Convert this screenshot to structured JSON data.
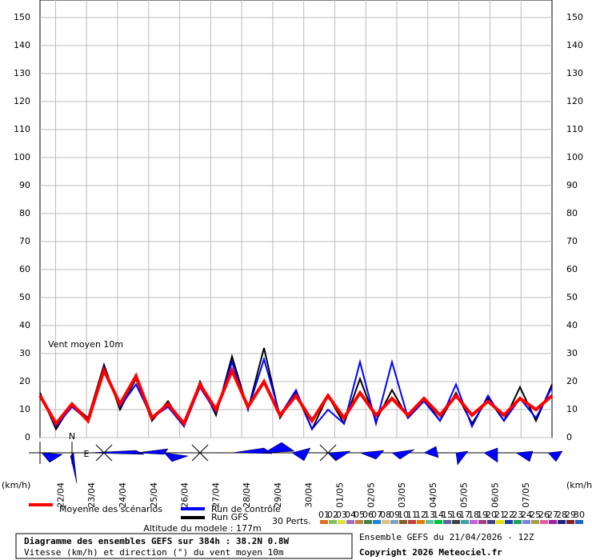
{
  "chart_data": {
    "type": "line",
    "title": "Diagramme des ensembles GEFS sur 384h : 38.2N 0.8W",
    "subtitle": "Vitesse (km/h) et direction (°) du vent moyen 10m",
    "run_label": "Ensemble GEFS du 21/04/2026 - 12Z",
    "copyright": "Copyright 2026 Meteociel.fr",
    "altitude": "Altitude du modele : 177m",
    "annotation": "Vent moyen 10m",
    "y_unit_left": "(km/h)",
    "y_unit_right": "(km/h)",
    "north_label": "N",
    "east_label": "E",
    "perturbations_label": "30 Perts.",
    "day_labels": [
      "22/04",
      "23/04",
      "24/04",
      "25/04",
      "26/04",
      "27/04",
      "28/04",
      "29/04",
      "30/04",
      "01/05",
      "02/05",
      "03/05",
      "04/05",
      "05/05",
      "06/05",
      "07/05"
    ],
    "ylim": [
      0,
      150
    ],
    "yticks": [
      0,
      10,
      20,
      30,
      40,
      50,
      60,
      70,
      80,
      90,
      100,
      110,
      120,
      130,
      140,
      150
    ],
    "grid": true,
    "series": [
      {
        "name": "Moyenne des scénarios",
        "color": "#ff0000",
        "width": 4,
        "values": [
          15,
          5,
          12,
          6,
          24,
          12,
          22,
          7,
          12,
          5,
          19,
          10,
          24,
          11,
          20,
          8,
          15,
          6,
          15,
          7,
          16,
          8,
          14,
          8,
          14,
          8,
          15,
          8,
          13,
          8,
          14,
          10,
          15
        ]
      },
      {
        "name": "Run de contrôle",
        "color": "#0000ff",
        "width": 2,
        "values": [
          15,
          4,
          11,
          6,
          25,
          11,
          19,
          7,
          11,
          4,
          18,
          9,
          27,
          10,
          28,
          8,
          17,
          3,
          10,
          5,
          27,
          5,
          27,
          7,
          13,
          6,
          19,
          4,
          15,
          6,
          14,
          7,
          18
        ]
      },
      {
        "name": "Run GFS",
        "color": "#000000",
        "width": 2,
        "values": [
          16,
          3,
          12,
          7,
          26,
          10,
          21,
          6,
          13,
          4,
          20,
          8,
          29,
          10,
          32,
          7,
          16,
          3,
          15,
          5,
          21,
          6,
          17,
          7,
          14,
          6,
          16,
          5,
          14,
          6,
          18,
          6,
          19
        ]
      }
    ],
    "perturbation_legend": [
      {
        "name": "01",
        "color": "#e07020"
      },
      {
        "name": "02",
        "color": "#80c060"
      },
      {
        "name": "03",
        "color": "#e0e040"
      },
      {
        "name": "04",
        "color": "#a070c0"
      },
      {
        "name": "05",
        "color": "#c08040"
      },
      {
        "name": "06",
        "color": "#408040"
      },
      {
        "name": "07",
        "color": "#2080e0"
      },
      {
        "name": "08",
        "color": "#e0c080"
      },
      {
        "name": "09",
        "color": "#80a0c0"
      },
      {
        "name": "10",
        "color": "#806020"
      },
      {
        "name": "11",
        "color": "#c04040"
      },
      {
        "name": "12",
        "color": "#e08000"
      },
      {
        "name": "13",
        "color": "#60c0a0"
      },
      {
        "name": "14",
        "color": "#00c040"
      },
      {
        "name": "15",
        "color": "#6060a0"
      },
      {
        "name": "16",
        "color": "#404040"
      },
      {
        "name": "17",
        "color": "#40a0a0"
      },
      {
        "name": "18",
        "color": "#c060e0"
      },
      {
        "name": "19",
        "color": "#a04080"
      },
      {
        "name": "20",
        "color": "#404080"
      },
      {
        "name": "21",
        "color": "#e0e000"
      },
      {
        "name": "22",
        "color": "#2040a0"
      },
      {
        "name": "23",
        "color": "#20a060"
      },
      {
        "name": "24",
        "color": "#8080e0"
      },
      {
        "name": "25",
        "color": "#a0a040"
      },
      {
        "name": "26",
        "color": "#e060a0"
      },
      {
        "name": "27",
        "color": "#a020a0"
      },
      {
        "name": "28",
        "color": "#202080"
      },
      {
        "name": "29",
        "color": "#802020"
      },
      {
        "name": "30",
        "color": "#2060c0"
      }
    ]
  }
}
